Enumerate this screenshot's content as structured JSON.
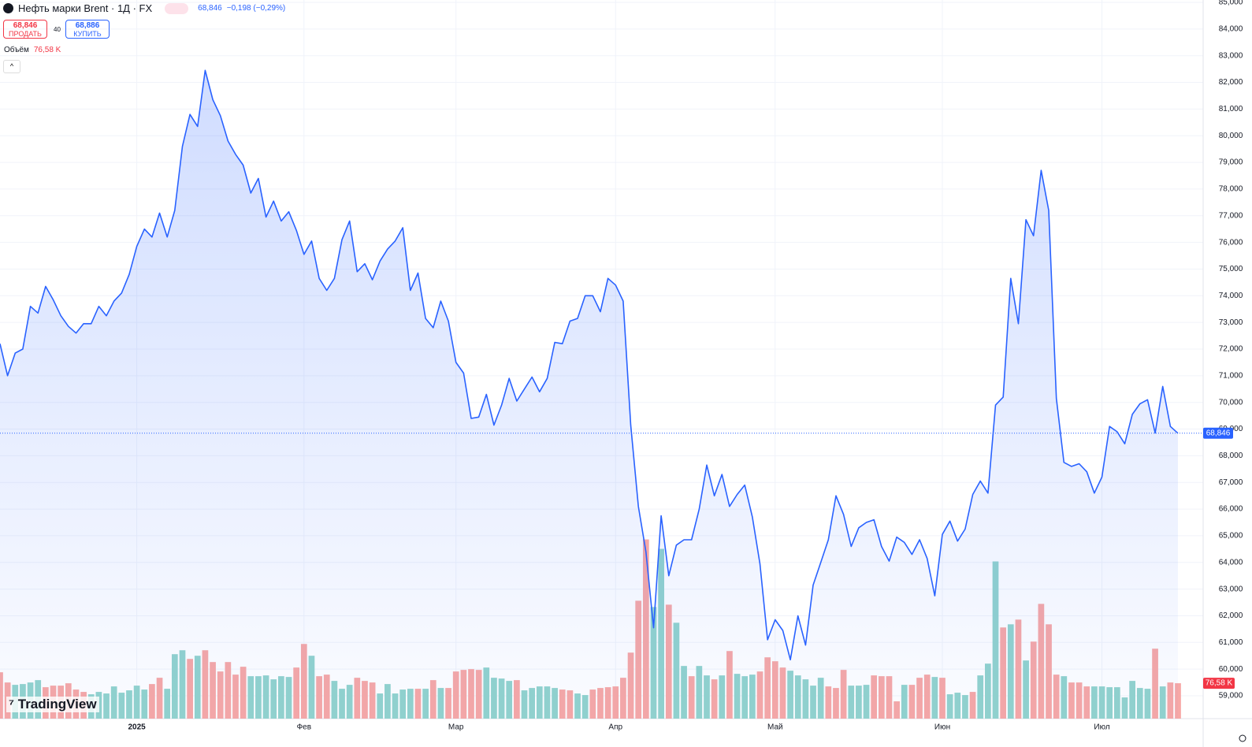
{
  "header": {
    "title": "Нефть марки Brent · 1Д · FX",
    "last": "68,846",
    "change": "−0,198 (−0,29%)",
    "sell_price": "68,846",
    "sell": "ПРОДАТЬ",
    "spread": "40",
    "buy_price": "68,886",
    "buy": "КУПИТЬ",
    "volume_label": "Объём",
    "volume_value": "76,58 K",
    "brand": "TradingView"
  },
  "chart_data": {
    "type": "area",
    "color": "#2962ff",
    "xlim": [
      0,
      155
    ],
    "xticks": [
      {
        "value": 18,
        "label": "2025"
      },
      {
        "value": 40,
        "label": "Фев"
      },
      {
        "value": 60,
        "label": "Мар"
      },
      {
        "value": 81,
        "label": "Апр"
      },
      {
        "value": 102,
        "label": "Май"
      },
      {
        "value": 124,
        "label": "Июн"
      },
      {
        "value": 145,
        "label": "Июл"
      }
    ],
    "ylim": [
      59,
      85
    ],
    "yticks": [
      {
        "value": 85,
        "label": "85,000"
      },
      {
        "value": 84,
        "label": "84,000"
      },
      {
        "value": 83,
        "label": "83,000"
      },
      {
        "value": 82,
        "label": "82,000"
      },
      {
        "value": 81,
        "label": "81,000"
      },
      {
        "value": 80,
        "label": "80,000"
      },
      {
        "value": 79,
        "label": "79,000"
      },
      {
        "value": 78,
        "label": "78,000"
      },
      {
        "value": 77,
        "label": "77,000"
      },
      {
        "value": 76,
        "label": "76,000"
      },
      {
        "value": 75,
        "label": "75,000"
      },
      {
        "value": 74,
        "label": "74,000"
      },
      {
        "value": 73,
        "label": "73,000"
      },
      {
        "value": 72,
        "label": "72,000"
      },
      {
        "value": 71,
        "label": "71,000"
      },
      {
        "value": 70,
        "label": "70,000"
      },
      {
        "value": 69,
        "label": "69,000"
      },
      {
        "value": 68,
        "label": "68,000"
      },
      {
        "value": 67,
        "label": "67,000"
      },
      {
        "value": 66,
        "label": "66,000"
      },
      {
        "value": 65,
        "label": "65,000"
      },
      {
        "value": 64,
        "label": "64,000"
      },
      {
        "value": 63,
        "label": "63,000"
      },
      {
        "value": 62,
        "label": "62,000"
      },
      {
        "value": 61,
        "label": "61,000"
      },
      {
        "value": 60,
        "label": "60,000"
      },
      {
        "value": 59,
        "label": "59,000"
      }
    ],
    "grid": true,
    "values": [
      72.2,
      71.0,
      71.85,
      72.0,
      73.6,
      73.35,
      74.35,
      73.85,
      73.25,
      72.85,
      72.6,
      72.95,
      72.95,
      73.6,
      73.25,
      73.8,
      74.1,
      74.8,
      75.85,
      76.5,
      76.2,
      77.1,
      76.2,
      77.2,
      79.6,
      80.8,
      80.35,
      82.45,
      81.35,
      80.75,
      79.8,
      79.3,
      78.9,
      77.85,
      78.4,
      76.95,
      77.55,
      76.8,
      77.15,
      76.45,
      75.55,
      76.05,
      74.65,
      74.2,
      74.65,
      76.1,
      76.8,
      74.9,
      75.2,
      74.6,
      75.3,
      75.75,
      76.05,
      76.55,
      74.2,
      74.85,
      73.15,
      72.8,
      73.8,
      73.05,
      71.5,
      71.1,
      69.4,
      69.45,
      70.3,
      69.15,
      69.9,
      70.9,
      70.05,
      70.5,
      70.95,
      70.4,
      70.9,
      72.25,
      72.2,
      73.05,
      73.15,
      74.0,
      74.0,
      73.4,
      74.65,
      74.4,
      73.8,
      69.15,
      66.1,
      64.4,
      61.55,
      65.75,
      63.5,
      64.65,
      64.85,
      64.85,
      66.0,
      67.65,
      66.5,
      67.3,
      66.1,
      66.55,
      66.9,
      65.7,
      63.95,
      61.1,
      61.85,
      61.45,
      60.35,
      62.0,
      60.9,
      63.15,
      64.0,
      64.85,
      66.5,
      65.8,
      64.6,
      65.3,
      65.5,
      65.6,
      64.6,
      64.05,
      64.95,
      64.75,
      64.3,
      64.85,
      64.15,
      62.75,
      65.05,
      65.55,
      64.8,
      65.25,
      66.55,
      67.05,
      66.6,
      69.9,
      70.2,
      74.65,
      72.95,
      76.85,
      76.25,
      78.7,
      77.2,
      70.15,
      67.75,
      67.6,
      67.7,
      67.4,
      66.6,
      67.2,
      69.1,
      68.9,
      68.45,
      69.55,
      69.95,
      70.1,
      68.85,
      70.6,
      69.1,
      68.846
    ],
    "last_label": "68,846",
    "volume_lim": [
      0,
      530
    ],
    "volume": [
      100.3,
      78.2,
      73.1,
      74.8,
      78.2,
      83.3,
      68,
      71.4,
      71.4,
      76.5,
      62.9,
      57.8,
      52.7,
      57.8,
      54.4,
      69.7,
      56.1,
      61.2,
      71.4,
      62.9,
      74.8,
      88.4,
      64.6,
      139.4,
      147.9,
      129.2,
      136,
      147.9,
      122.4,
      102,
      122.4,
      95.2,
      112.2,
      91.8,
      91.8,
      93.5,
      85,
      91.8,
      90.1,
      110.5,
      161.5,
      136,
      91.8,
      95.2,
      81.6,
      64.6,
      73.1,
      88.4,
      81.6,
      78.2,
      54.4,
      74.8,
      54.4,
      62.9,
      64.6,
      64.6,
      64.6,
      83.3,
      66.3,
      66.3,
      102,
      105.4,
      107.1,
      105.4,
      110.5,
      88.4,
      86.7,
      81.6,
      83.3,
      61.2,
      66.3,
      69.7,
      69.7,
      66.3,
      62.9,
      61.2,
      54.4,
      51,
      62.9,
      66.3,
      68,
      69.7,
      88.4,
      142.8,
      255,
      387.6,
      241.4,
      367.2,
      246.5,
      207.4,
      113.9,
      91.8,
      113.9,
      93.5,
      85,
      93.5,
      146.2,
      96.9,
      91.8,
      95.2,
      102,
      132.6,
      124.1,
      110.5,
      103.7,
      93.5,
      85,
      71.4,
      88.4,
      69.7,
      66.3,
      105.4,
      71.4,
      71.4,
      73.1,
      93.5,
      91.8,
      91.8,
      37.4,
      73.1,
      73.1,
      88.4,
      95.2,
      90.1,
      88.4,
      52.7,
      56.1,
      51,
      57.8,
      93.5,
      119,
      340,
      197.2,
      204,
      214.2,
      125.8,
      166.6,
      248.2,
      204,
      95.2,
      91.8,
      78.2,
      78.2,
      69.7,
      69.7,
      69.7,
      68,
      68,
      45.9,
      81.6,
      66.3,
      64.6,
      151.3,
      69.7,
      78.2,
      76.58
    ],
    "volume_colors": [
      "#f7a8a6",
      "#f7a8a6",
      "#92d3cd",
      "#92d3cd",
      "#92d3cd",
      "#92d3cd",
      "#f7a8a6",
      "#f7a8a6",
      "#f7a8a6",
      "#f7a8a6",
      "#f7a8a6",
      "#f7a8a6",
      "#92d3cd",
      "#92d3cd",
      "#92d3cd",
      "#92d3cd",
      "#92d3cd",
      "#92d3cd",
      "#92d3cd",
      "#92d3cd",
      "#f7a8a6",
      "#f7a8a6",
      "#92d3cd",
      "#92d3cd",
      "#92d3cd",
      "#f7a8a6",
      "#92d3cd",
      "#f7a8a6",
      "#f7a8a6",
      "#f7a8a6",
      "#f7a8a6",
      "#f7a8a6",
      "#f7a8a6",
      "#92d3cd",
      "#92d3cd",
      "#92d3cd",
      "#92d3cd",
      "#92d3cd",
      "#92d3cd",
      "#f7a8a6",
      "#f7a8a6",
      "#92d3cd",
      "#f7a8a6",
      "#f7a8a6",
      "#92d3cd",
      "#92d3cd",
      "#92d3cd",
      "#f7a8a6",
      "#f7a8a6",
      "#f7a8a6",
      "#92d3cd",
      "#92d3cd",
      "#92d3cd",
      "#92d3cd",
      "#92d3cd",
      "#f7a8a6",
      "#92d3cd",
      "#f7a8a6",
      "#92d3cd",
      "#f7a8a6",
      "#f7a8a6",
      "#f7a8a6",
      "#f7a8a6",
      "#f7a8a6",
      "#92d3cd",
      "#92d3cd",
      "#92d3cd",
      "#92d3cd",
      "#f7a8a6",
      "#92d3cd",
      "#92d3cd",
      "#92d3cd",
      "#92d3cd",
      "#92d3cd",
      "#f7a8a6",
      "#f7a8a6",
      "#92d3cd",
      "#92d3cd",
      "#f7a8a6",
      "#f7a8a6",
      "#f7a8a6",
      "#f7a8a6",
      "#f7a8a6",
      "#f7a8a6",
      "#f7a8a6",
      "#f7a8a6",
      "#92d3cd",
      "#92d3cd",
      "#f7a8a6",
      "#92d3cd",
      "#92d3cd",
      "#f7a8a6",
      "#92d3cd",
      "#92d3cd",
      "#f7a8a6",
      "#92d3cd",
      "#f7a8a6",
      "#92d3cd",
      "#92d3cd",
      "#92d3cd",
      "#f7a8a6",
      "#f7a8a6",
      "#f7a8a6",
      "#f7a8a6",
      "#92d3cd",
      "#92d3cd",
      "#92d3cd",
      "#92d3cd",
      "#92d3cd",
      "#f7a8a6",
      "#f7a8a6",
      "#f7a8a6",
      "#92d3cd",
      "#92d3cd",
      "#92d3cd",
      "#f7a8a6",
      "#f7a8a6",
      "#f7a8a6",
      "#f7a8a6",
      "#92d3cd",
      "#f7a8a6",
      "#f7a8a6",
      "#f7a8a6",
      "#92d3cd",
      "#f7a8a6",
      "#92d3cd",
      "#92d3cd",
      "#92d3cd",
      "#f7a8a6",
      "#92d3cd",
      "#92d3cd",
      "#92d3cd",
      "#f7a8a6",
      "#92d3cd",
      "#f7a8a6",
      "#92d3cd",
      "#f7a8a6",
      "#f7a8a6",
      "#f7a8a6",
      "#f7a8a6",
      "#92d3cd",
      "#f7a8a6",
      "#f7a8a6",
      "#f7a8a6",
      "#92d3cd",
      "#92d3cd",
      "#92d3cd",
      "#92d3cd",
      "#92d3cd",
      "#92d3cd",
      "#92d3cd",
      "#92d3cd",
      "#f7a8a6",
      "#92d3cd",
      "#f7a8a6",
      "#f7a8a6"
    ]
  }
}
